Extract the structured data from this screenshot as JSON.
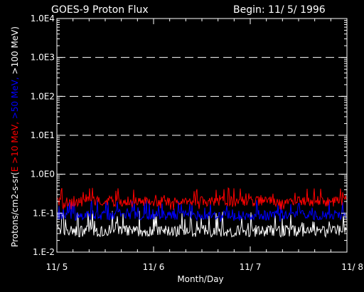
{
  "header": {
    "title": "GOES-9 Proton Flux",
    "begin": "Begin: 11/ 5/ 1996"
  },
  "colors": {
    "background": "#000000",
    "axes": "#ffffff",
    "series_10mev": "#ff0000",
    "series_50mev": "#0000ff",
    "series_100mev": "#ffffff"
  },
  "chart_data": {
    "type": "line",
    "title": "GOES-9 Proton Flux",
    "xlabel": "Month/Day",
    "ylabel_parts": [
      {
        "text": "Protons/cm2-s-sr(",
        "color": "#ffffff"
      },
      {
        "text": "E >10 MeV, ",
        "color": "#ff0000"
      },
      {
        "text": ">50 MeV, ",
        "color": "#0000ff"
      },
      {
        "text": ">100 MeV)",
        "color": "#ffffff"
      }
    ],
    "yscale": "log",
    "ylim": [
      0.01,
      10000
    ],
    "yticks": [
      {
        "value": 0.01,
        "label": "1.E-2"
      },
      {
        "value": 0.1,
        "label": "1.E-1"
      },
      {
        "value": 1,
        "label": "1.0E0"
      },
      {
        "value": 10,
        "label": "1.0E1"
      },
      {
        "value": 100,
        "label": "1.0E2"
      },
      {
        "value": 1000,
        "label": "1.0E3"
      },
      {
        "value": 10000,
        "label": "1.0E4"
      }
    ],
    "xlim": [
      "11/5/1996",
      "11/8/1996"
    ],
    "xticks": [
      {
        "value": 0,
        "label": "11/ 5"
      },
      {
        "value": 1,
        "label": "11/ 6"
      },
      {
        "value": 2,
        "label": "11/ 7"
      },
      {
        "value": 3,
        "label": "11/ 8"
      }
    ],
    "dashed_grid_at": [
      1,
      10,
      100,
      1000
    ],
    "series": [
      {
        "name": "E >10 MeV",
        "color": "#ff0000",
        "typical": 0.2,
        "range": [
          0.12,
          0.45
        ]
      },
      {
        "name": ">50 MeV",
        "color": "#0000ff",
        "typical": 0.09,
        "range": [
          0.06,
          0.22
        ]
      },
      {
        "name": ">100 MeV",
        "color": "#ffffff",
        "typical": 0.035,
        "range": [
          0.025,
          0.12
        ]
      }
    ]
  }
}
